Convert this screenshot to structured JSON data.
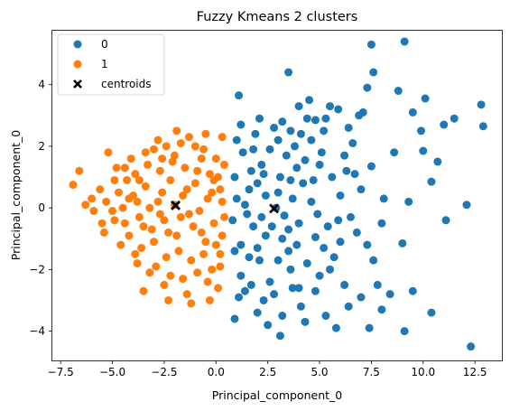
{
  "chart_data": {
    "type": "scatter",
    "title": "Fuzzy Kmeans 2 clusters",
    "xlabel": "Principal_component_0",
    "ylabel": "Principal_component_0",
    "xlim": [
      -7.9,
      13.8
    ],
    "ylim": [
      -4.95,
      5.75
    ],
    "xticks": [
      -7.5,
      -5.0,
      -2.5,
      0.0,
      2.5,
      5.0,
      7.5,
      10.0,
      12.5
    ],
    "xtick_labels": [
      "−7.5",
      "−5.0",
      "−2.5",
      "0.0",
      "2.5",
      "5.0",
      "7.5",
      "10.0",
      "12.5"
    ],
    "yticks": [
      -4,
      -2,
      0,
      2,
      4
    ],
    "ytick_labels": [
      "−4",
      "−2",
      "0",
      "2",
      "4"
    ],
    "grid": false,
    "legend": {
      "position": "top-left",
      "entries": [
        {
          "label": "0",
          "color": "#1f77b4",
          "marker": "circle"
        },
        {
          "label": "1",
          "color": "#ff7f0e",
          "marker": "circle"
        },
        {
          "label": "centroids",
          "color": "#000000",
          "marker": "x"
        }
      ]
    },
    "series": [
      {
        "name": "0",
        "color": "#1f77b4",
        "points": [
          [
            9.1,
            5.4
          ],
          [
            7.5,
            5.3
          ],
          [
            7.6,
            4.4
          ],
          [
            3.5,
            4.4
          ],
          [
            8.8,
            3.8
          ],
          [
            7.3,
            3.9
          ],
          [
            1.1,
            3.65
          ],
          [
            10.1,
            3.55
          ],
          [
            12.8,
            3.35
          ],
          [
            5.5,
            3.3
          ],
          [
            5.9,
            3.2
          ],
          [
            6.9,
            3.0
          ],
          [
            7.1,
            3.1
          ],
          [
            9.5,
            3.1
          ],
          [
            11.5,
            2.9
          ],
          [
            12.9,
            2.65
          ],
          [
            11.0,
            2.7
          ],
          [
            4.8,
            2.85
          ],
          [
            4.4,
            2.9
          ],
          [
            3.6,
            2.5
          ],
          [
            2.8,
            2.6
          ],
          [
            1.9,
            2.4
          ],
          [
            9.9,
            2.5
          ],
          [
            6.6,
            2.1
          ],
          [
            8.6,
            1.8
          ],
          [
            10.0,
            1.85
          ],
          [
            10.7,
            1.5
          ],
          [
            7.5,
            1.35
          ],
          [
            6.3,
            1.2
          ],
          [
            5.1,
            1.8
          ],
          [
            4.3,
            1.55
          ],
          [
            3.9,
            1.3
          ],
          [
            3.1,
            1.0
          ],
          [
            2.2,
            1.4
          ],
          [
            1.6,
            0.6
          ],
          [
            10.4,
            0.85
          ],
          [
            9.3,
            0.2
          ],
          [
            12.1,
            0.1
          ],
          [
            11.1,
            -0.4
          ],
          [
            8.0,
            -0.5
          ],
          [
            7.3,
            -1.2
          ],
          [
            9.0,
            -1.15
          ],
          [
            7.6,
            -1.7
          ],
          [
            5.7,
            -1.6
          ],
          [
            4.8,
            -0.95
          ],
          [
            4.0,
            -0.5
          ],
          [
            3.3,
            -0.25
          ],
          [
            2.4,
            0.4
          ],
          [
            1.8,
            -0.6
          ],
          [
            1.2,
            -1.2
          ],
          [
            2.1,
            -1.7
          ],
          [
            3.6,
            -2.0
          ],
          [
            5.0,
            -2.2
          ],
          [
            6.2,
            -2.5
          ],
          [
            7.8,
            -2.5
          ],
          [
            9.5,
            -2.7
          ],
          [
            8.4,
            -2.8
          ],
          [
            7.0,
            -2.9
          ],
          [
            6.4,
            -3.2
          ],
          [
            5.3,
            -3.5
          ],
          [
            4.1,
            -3.2
          ],
          [
            3.2,
            -3.5
          ],
          [
            2.3,
            -3.0
          ],
          [
            1.4,
            -2.7
          ],
          [
            0.9,
            -3.6
          ],
          [
            2.5,
            -3.8
          ],
          [
            3.1,
            -4.15
          ],
          [
            5.8,
            -3.9
          ],
          [
            7.4,
            -3.9
          ],
          [
            9.1,
            -4.0
          ],
          [
            10.4,
            -3.4
          ],
          [
            8.0,
            -3.3
          ],
          [
            12.3,
            -4.5
          ],
          [
            1.0,
            2.2
          ],
          [
            1.3,
            1.8
          ],
          [
            1.7,
            1.2
          ],
          [
            2.0,
            0.8
          ],
          [
            2.6,
            1.9
          ],
          [
            3.0,
            2.2
          ],
          [
            3.4,
            1.7
          ],
          [
            3.8,
            2.0
          ],
          [
            4.1,
            2.4
          ],
          [
            4.6,
            2.2
          ],
          [
            5.2,
            2.5
          ],
          [
            5.6,
            1.0
          ],
          [
            6.0,
            0.4
          ],
          [
            6.5,
            -0.3
          ],
          [
            5.4,
            -0.6
          ],
          [
            4.6,
            0.2
          ],
          [
            4.2,
            0.8
          ],
          [
            3.7,
            0.3
          ],
          [
            3.0,
            0.5
          ],
          [
            2.7,
            -0.6
          ],
          [
            3.2,
            -1.0
          ],
          [
            2.2,
            -0.3
          ],
          [
            1.5,
            -0.2
          ],
          [
            1.0,
            0.3
          ],
          [
            0.8,
            -0.4
          ],
          [
            1.2,
            -2.2
          ],
          [
            1.7,
            -2.5
          ],
          [
            2.0,
            -1.3
          ],
          [
            2.6,
            -2.4
          ],
          [
            3.0,
            -1.7
          ],
          [
            3.5,
            -1.4
          ],
          [
            4.0,
            -2.6
          ],
          [
            4.4,
            -1.8
          ],
          [
            4.8,
            -2.7
          ],
          [
            5.5,
            -2.0
          ],
          [
            6.0,
            -1.1
          ],
          [
            6.8,
            -0.8
          ],
          [
            7.0,
            0.6
          ],
          [
            6.2,
            1.7
          ],
          [
            5.0,
            1.4
          ],
          [
            4.7,
            0.9
          ],
          [
            3.5,
            -0.7
          ],
          [
            2.4,
            -0.9
          ],
          [
            1.6,
            -1.6
          ],
          [
            1.1,
            -2.9
          ],
          [
            2.8,
            -2.8
          ],
          [
            3.7,
            -2.6
          ],
          [
            4.3,
            -3.7
          ],
          [
            2.0,
            -3.4
          ],
          [
            0.9,
            1.0
          ],
          [
            1.4,
            0.1
          ],
          [
            2.9,
            0.0
          ],
          [
            3.6,
            0.9
          ],
          [
            4.9,
            -0.2
          ],
          [
            5.9,
            -0.4
          ],
          [
            1.2,
            2.7
          ],
          [
            2.1,
            2.9
          ],
          [
            3.2,
            2.8
          ],
          [
            4.0,
            3.3
          ],
          [
            4.5,
            3.5
          ],
          [
            5.3,
            2.9
          ],
          [
            6.4,
            2.6
          ],
          [
            0.9,
            -1.4
          ],
          [
            1.8,
            1.9
          ],
          [
            2.3,
            1.1
          ],
          [
            3.9,
            -1.2
          ],
          [
            5.2,
            -1.3
          ],
          [
            6.7,
            1.1
          ],
          [
            8.1,
            0.3
          ]
        ]
      },
      {
        "name": "1",
        "color": "#ff7f0e",
        "points": [
          [
            -6.6,
            1.2
          ],
          [
            -6.9,
            0.75
          ],
          [
            -5.2,
            1.8
          ],
          [
            -4.8,
            1.3
          ],
          [
            -6.0,
            0.3
          ],
          [
            -5.9,
            -0.1
          ],
          [
            -5.6,
            0.6
          ],
          [
            -5.4,
            -0.8
          ],
          [
            -4.9,
            -0.4
          ],
          [
            -4.6,
            -1.2
          ],
          [
            -4.3,
            0.9
          ],
          [
            -4.1,
            1.6
          ],
          [
            -3.8,
            -1.8
          ],
          [
            -3.5,
            -2.7
          ],
          [
            -3.2,
            -2.1
          ],
          [
            -3.0,
            1.9
          ],
          [
            -2.8,
            2.2
          ],
          [
            -2.5,
            -2.5
          ],
          [
            -2.3,
            -3.0
          ],
          [
            -2.0,
            1.7
          ],
          [
            -1.7,
            2.1
          ],
          [
            -1.4,
            -2.8
          ],
          [
            -1.2,
            -3.1
          ],
          [
            -1.0,
            2.0
          ],
          [
            -0.6,
            1.9
          ],
          [
            -0.4,
            -2.4
          ],
          [
            -0.3,
            -3.0
          ],
          [
            0.0,
            1.6
          ],
          [
            0.2,
            -1.9
          ],
          [
            0.3,
            2.3
          ],
          [
            -4.5,
            0.0
          ],
          [
            -4.0,
            0.4
          ],
          [
            -3.7,
            -0.3
          ],
          [
            -3.4,
            0.7
          ],
          [
            -3.1,
            -0.7
          ],
          [
            -2.8,
            0.2
          ],
          [
            -2.5,
            -0.4
          ],
          [
            -2.2,
            0.9
          ],
          [
            -1.9,
            -0.9
          ],
          [
            -1.6,
            0.4
          ],
          [
            -1.3,
            -0.2
          ],
          [
            -1.0,
            0.8
          ],
          [
            -0.7,
            -0.8
          ],
          [
            -0.4,
            0.3
          ],
          [
            -0.1,
            -0.5
          ],
          [
            0.2,
            0.6
          ],
          [
            0.4,
            -0.3
          ],
          [
            -3.9,
            1.1
          ],
          [
            -3.3,
            1.4
          ],
          [
            -2.7,
            1.2
          ],
          [
            -2.1,
            1.5
          ],
          [
            -1.5,
            1.3
          ],
          [
            -0.9,
            1.2
          ],
          [
            -0.3,
            1.1
          ],
          [
            0.1,
            1.0
          ],
          [
            -4.2,
            -0.9
          ],
          [
            -3.6,
            -1.3
          ],
          [
            -3.0,
            -1.1
          ],
          [
            -2.4,
            -1.6
          ],
          [
            -1.8,
            -1.4
          ],
          [
            -1.2,
            -1.7
          ],
          [
            -0.6,
            -1.5
          ],
          [
            0.0,
            -1.2
          ],
          [
            0.3,
            -0.9
          ],
          [
            -4.7,
            0.5
          ],
          [
            -5.0,
            -0.1
          ],
          [
            -5.3,
            0.2
          ],
          [
            -4.4,
            -0.5
          ],
          [
            -3.8,
            0.2
          ],
          [
            -3.2,
            0.0
          ],
          [
            -2.6,
            0.5
          ],
          [
            -2.0,
            0.1
          ],
          [
            -1.4,
            0.6
          ],
          [
            -0.8,
            -0.1
          ],
          [
            -0.2,
            0.5
          ],
          [
            0.3,
            0.2
          ],
          [
            -2.9,
            -1.9
          ],
          [
            -2.2,
            -2.2
          ],
          [
            -1.6,
            -2.3
          ],
          [
            -0.9,
            -2.1
          ],
          [
            -0.2,
            -2.0
          ],
          [
            0.1,
            -2.6
          ],
          [
            -3.4,
            1.8
          ],
          [
            -2.4,
            2.0
          ],
          [
            -1.3,
            2.3
          ],
          [
            -0.5,
            2.4
          ],
          [
            -1.9,
            2.5
          ],
          [
            -3.9,
            -1.5
          ],
          [
            -4.4,
            1.3
          ],
          [
            -4.9,
            0.9
          ],
          [
            -5.5,
            -0.5
          ],
          [
            -6.3,
            0.1
          ],
          [
            -2.7,
            -0.2
          ],
          [
            -2.3,
            -0.8
          ],
          [
            -1.1,
            -0.6
          ],
          [
            -0.5,
            -1.1
          ],
          [
            -1.7,
            -0.3
          ],
          [
            -3.5,
            -0.6
          ],
          [
            -0.1,
            0.9
          ],
          [
            0.4,
            1.4
          ],
          [
            0.2,
            -1.5
          ],
          [
            -0.7,
            1.6
          ],
          [
            -2.6,
            1.6
          ],
          [
            -3.7,
            0.9
          ],
          [
            -4.2,
            0.3
          ]
        ]
      },
      {
        "name": "centroids",
        "color": "#000000",
        "marker": "x",
        "points": [
          [
            -1.95,
            0.08
          ],
          [
            2.8,
            -0.02
          ]
        ]
      }
    ]
  }
}
